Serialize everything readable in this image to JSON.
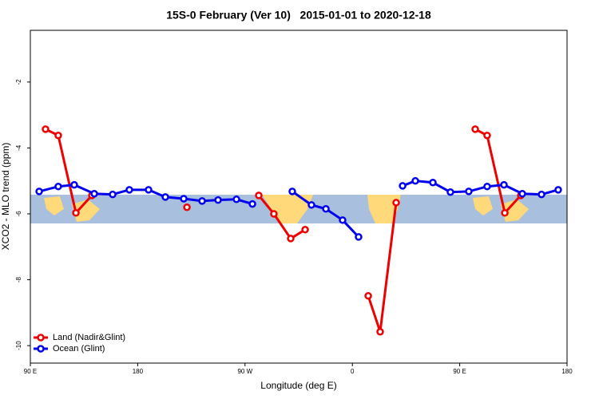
{
  "chart_data": {
    "type": "line",
    "title": "15S-0 February (Ver 10)   2015-01-01 to 2020-12-18",
    "xlabel": "Longitude (deg E)",
    "ylabel": "XCO2 - MLO trend (ppm)",
    "xlim": [
      90,
      540
    ],
    "xticks": [
      {
        "value": 90,
        "label": "90 E"
      },
      {
        "value": 180,
        "label": "180"
      },
      {
        "value": 270,
        "label": "90 W"
      },
      {
        "value": 360,
        "label": "0"
      },
      {
        "value": 450,
        "label": "90 E"
      },
      {
        "value": 540,
        "label": "180"
      }
    ],
    "ylim": [
      -10.53,
      -0.43
    ],
    "yticks": [
      -10,
      -8,
      -6,
      -4,
      -2
    ],
    "legend": "bottomleft",
    "series": [
      {
        "name": "Land (Nadir&Glint)",
        "color": "#ee0000",
        "x": [
          102.7,
          113.4,
          128.2,
          141.6,
          null,
          221.3,
          null,
          281.5,
          294.2,
          308.3,
          320.4,
          null,
          373.3,
          383.3,
          396.7,
          null,
          463.0,
          473.0,
          487.8,
          501.2
        ],
        "values": [
          -3.43,
          -3.62,
          -5.97,
          -5.44,
          null,
          -5.8,
          null,
          -5.44,
          -6.0,
          -6.75,
          -6.48,
          null,
          -8.49,
          -9.58,
          -5.66,
          null,
          -3.43,
          -3.62,
          -5.97,
          -5.44
        ]
      },
      {
        "name": "Ocean (Glint)",
        "color": "#0000ee",
        "x": [
          97.4,
          113.4,
          126.8,
          143.6,
          159.0,
          173.0,
          189.1,
          203.2,
          218.6,
          234.0,
          247.4,
          262.8,
          276.2,
          null,
          309.6,
          325.7,
          337.8,
          351.8,
          365.2,
          null,
          402.1,
          412.8,
          427.5,
          442.2,
          457.6,
          473.0,
          487.1,
          502.5,
          518.6,
          532.6
        ],
        "values": [
          -5.32,
          -5.17,
          -5.12,
          -5.39,
          -5.41,
          -5.27,
          -5.27,
          -5.49,
          -5.54,
          -5.61,
          -5.58,
          -5.56,
          -5.7,
          null,
          -5.32,
          -5.73,
          -5.85,
          -6.19,
          -6.7,
          null,
          -5.15,
          -5.0,
          -5.05,
          -5.34,
          -5.32,
          -5.17,
          -5.12,
          -5.39,
          -5.41,
          -5.27
        ]
      }
    ]
  }
}
